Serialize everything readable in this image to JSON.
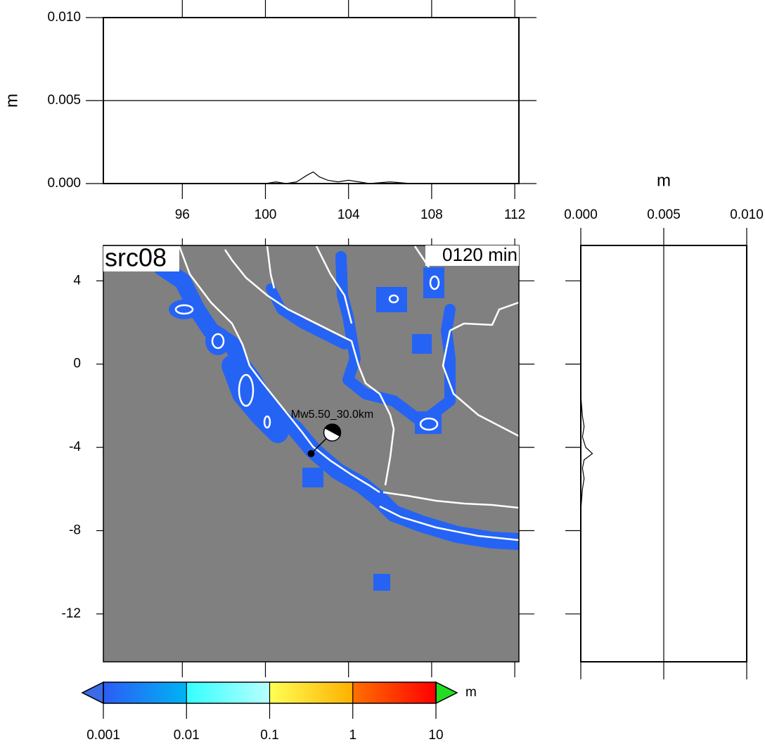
{
  "map": {
    "label": "src08",
    "time": "0120 min",
    "event": {
      "label": "Mw5.50_30.0km",
      "lon": 102.2,
      "lat": -4.3
    },
    "xlim": [
      92.2,
      112.2
    ],
    "ylim": [
      -14.3,
      5.7
    ],
    "yticks": [
      4,
      0,
      -4,
      -8,
      -12
    ],
    "xticks": [
      96,
      100,
      104,
      108,
      112
    ],
    "land_color": "#808080",
    "wave_color": "#2563f5",
    "coast_color": "#ffffff"
  },
  "top_profile": {
    "type": "line",
    "y_label": "m",
    "ylim": [
      0,
      0.01
    ],
    "yticks": [
      {
        "value": 0,
        "label": "0.000"
      },
      {
        "value": 0.005,
        "label": "0.005"
      },
      {
        "value": 0.01,
        "label": "0.010"
      }
    ],
    "x": [
      100,
      100.5,
      101,
      101.5,
      102,
      102.3,
      102.6,
      103,
      103.5,
      104,
      104.5,
      105,
      106,
      107
    ],
    "values": [
      0,
      0.0001,
      0,
      0.0001,
      0.0005,
      0.0007,
      0.0004,
      0.0002,
      0.0001,
      0.0002,
      0.0001,
      0,
      0.0001,
      0
    ]
  },
  "right_profile": {
    "type": "line",
    "x_label": "m",
    "xlim": [
      0,
      0.01
    ],
    "xticks": [
      {
        "value": 0,
        "label": "0.000"
      },
      {
        "value": 0.005,
        "label": "0.005"
      },
      {
        "value": 0.01,
        "label": "0.010"
      }
    ],
    "lat": [
      -1.5,
      -2.5,
      -3,
      -3.5,
      -4,
      -4.3,
      -4.6,
      -5,
      -5.5,
      -6,
      -7
    ],
    "values": [
      0,
      0.0001,
      0.0002,
      0.0001,
      0.0003,
      0.0007,
      0.0002,
      0.0001,
      0.0002,
      0.0001,
      0
    ]
  },
  "colorbar": {
    "unit": "m",
    "ticks": [
      0.001,
      0.01,
      0.1,
      1,
      10
    ],
    "colors": [
      "#2b5cf6",
      "#00b4f4",
      "#33ffff",
      "#b8ffff",
      "#ffff55",
      "#ffb000",
      "#ff7000",
      "#ff0000"
    ],
    "under_color": "#3a6be8",
    "over_color": "#22dd22"
  }
}
